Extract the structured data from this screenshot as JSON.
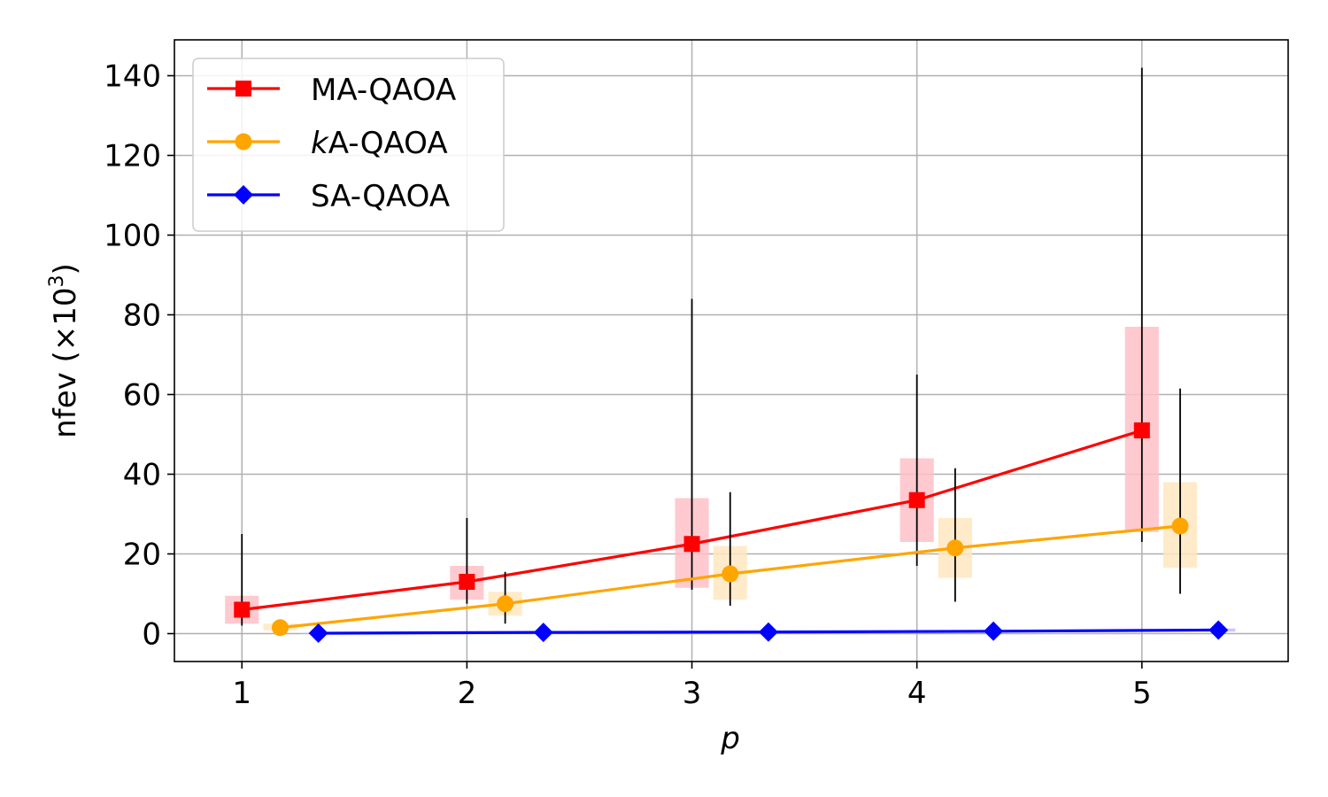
{
  "chart_data": {
    "type": "line",
    "x": [
      1,
      2,
      3,
      4,
      5
    ],
    "xlabel": "p",
    "ylabel_prefix": "nfev (×10",
    "ylabel_exp": "3",
    "ylabel_suffix": ")",
    "xlim": [
      0.7,
      5.65
    ],
    "ylim": [
      -7,
      149
    ],
    "xticks": [
      1,
      2,
      3,
      4,
      5
    ],
    "yticks": [
      0,
      20,
      40,
      60,
      80,
      100,
      120,
      140
    ],
    "grid": true,
    "legend_position": "upper-left",
    "series": [
      {
        "name": "MA-QAOA",
        "name_italic": "",
        "name_rest": "MA-QAOA",
        "color": "#ff0000",
        "box_color": "#ffc0c8",
        "marker": "square",
        "offset": 0.0,
        "values": [
          6,
          13,
          22.5,
          33.5,
          51
        ],
        "box_low": [
          2.5,
          8.5,
          11.5,
          23,
          25.5
        ],
        "box_high": [
          9.5,
          17,
          34,
          44,
          77
        ],
        "whisker_low": [
          2,
          7.5,
          11,
          17,
          23
        ],
        "whisker_high": [
          25,
          29,
          84,
          65,
          142
        ]
      },
      {
        "name": "kA-QAOA",
        "name_italic": "k",
        "name_rest": "A-QAOA",
        "color": "#ffa500",
        "box_color": "#ffe8c0",
        "marker": "circle",
        "offset": 0.17,
        "values": [
          1.5,
          7.5,
          15,
          21.5,
          27
        ],
        "box_low": [
          0.8,
          4.5,
          8.5,
          14,
          16.5
        ],
        "box_high": [
          2.5,
          10.5,
          22,
          29,
          38
        ],
        "whisker_low": [
          0.5,
          2.5,
          7,
          8,
          10
        ],
        "whisker_high": [
          3.5,
          15.5,
          35.5,
          41.5,
          61.5
        ]
      },
      {
        "name": "SA-QAOA",
        "name_italic": "",
        "name_rest": "SA-QAOA",
        "color": "#0000ff",
        "box_color": "#c0c0ff",
        "marker": "diamond",
        "offset": 0.34,
        "values": [
          0.1,
          0.3,
          0.4,
          0.6,
          0.9
        ],
        "box_low": [
          0,
          0.1,
          0.2,
          0.3,
          0.5
        ],
        "box_high": [
          0.2,
          0.5,
          0.6,
          0.9,
          1.3
        ],
        "whisker_low": [
          0,
          0.05,
          0.1,
          0.2,
          0.3
        ],
        "whisker_high": [
          0.3,
          0.6,
          0.8,
          1.1,
          1.6
        ]
      }
    ]
  }
}
